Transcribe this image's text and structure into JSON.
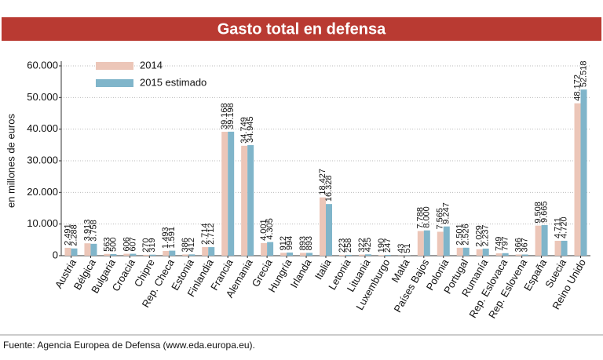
{
  "chart_data": {
    "type": "bar",
    "title": "Gasto total en defensa",
    "y_label": "en millones de euros",
    "source": "Fuente: Agencia Europea de Defensa (www.eda.europa.eu).",
    "categories": [
      "Austria",
      "Bélgica",
      "Bulgaria",
      "Croacia",
      "Chipre",
      "Rep. Checa",
      "Estonia",
      "Finlandia",
      "Francia",
      "Alemania",
      "Grecia",
      "Hungría",
      "Irlanda",
      "Italia",
      "Letonia",
      "Lituania",
      "Luxemburgo",
      "Malta",
      "Países Bajos",
      "Polonia",
      "Portugal",
      "Rumanía",
      "Rep. Eslovaca",
      "Rep. Eslovena",
      "España",
      "Suecia",
      "Reino Unido"
    ],
    "series": [
      {
        "name": "2014",
        "color": "#ecc6b8",
        "values": [
          2491,
          3913,
          563,
          606,
          270,
          1493,
          386,
          2714,
          39168,
          34749,
          4001,
          912,
          893,
          18427,
          223,
          322,
          190,
          43,
          7788,
          7565,
          2501,
          2029,
          749,
          366,
          9508,
          4711,
          48172
        ],
        "value_labels": [
          "2.491",
          "3.913",
          "563",
          "606",
          "270",
          "1.493",
          "386",
          "2.714",
          "39.168",
          "34.749",
          "4.001",
          "912",
          "893",
          "18.427",
          "223",
          "322",
          "190",
          "43",
          "7.788",
          "7.565",
          "2.501",
          "2.029",
          "749",
          "366",
          "9.508",
          "4.711",
          "48.172"
        ]
      },
      {
        "name": "2015 estimado",
        "color": "#80b5ca",
        "values": [
          2288,
          3758,
          500,
          607,
          319,
          1591,
          412,
          2712,
          39198,
          34945,
          4305,
          994,
          893,
          16328,
          258,
          425,
          247,
          51,
          8000,
          9247,
          2526,
          2237,
          797,
          367,
          9665,
          4720,
          52518
        ],
        "value_labels": [
          "2.288",
          "3.758",
          "500",
          "607",
          "319",
          "1.591",
          "412",
          "2.712",
          "39.198",
          "34.945",
          "4.305",
          "994",
          "893",
          "16.328",
          "258",
          "425",
          "247",
          "51",
          "8.000",
          "9.247",
          "2.526",
          "2.237",
          "797",
          "367",
          "9.665",
          "4.720",
          "52.518"
        ]
      }
    ],
    "ylim": [
      0,
      60000
    ],
    "yticks": [
      0,
      {
        "value": 10000,
        "label": "10.000"
      },
      {
        "value": 20000,
        "label": "20.000"
      },
      {
        "value": 30000,
        "label": "30.000"
      },
      {
        "value": 40000,
        "label": "40.000"
      },
      {
        "value": 50000,
        "label": "50.000"
      },
      {
        "value": 60000,
        "label": "60.000"
      }
    ],
    "grid": true
  }
}
